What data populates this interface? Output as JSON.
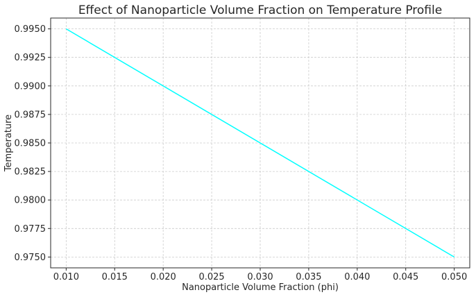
{
  "chart_data": {
    "type": "line",
    "title": "Effect of Nanoparticle Volume Fraction on Temperature Profile",
    "xlabel": "Nanoparticle Volume Fraction (phi)",
    "ylabel": "Temperature",
    "xlim": [
      0.0084,
      0.0516
    ],
    "ylim": [
      0.97405,
      0.99595
    ],
    "x_ticks": [
      "0.010",
      "0.015",
      "0.020",
      "0.025",
      "0.030",
      "0.035",
      "0.040",
      "0.045",
      "0.050"
    ],
    "y_ticks": [
      "0.9750",
      "0.9775",
      "0.9800",
      "0.9825",
      "0.9850",
      "0.9875",
      "0.9900",
      "0.9925",
      "0.9950"
    ],
    "grid": true,
    "series": [
      {
        "color": "#00ffff",
        "x": [
          0.01,
          0.05
        ],
        "y": [
          0.995,
          0.975
        ]
      }
    ]
  }
}
